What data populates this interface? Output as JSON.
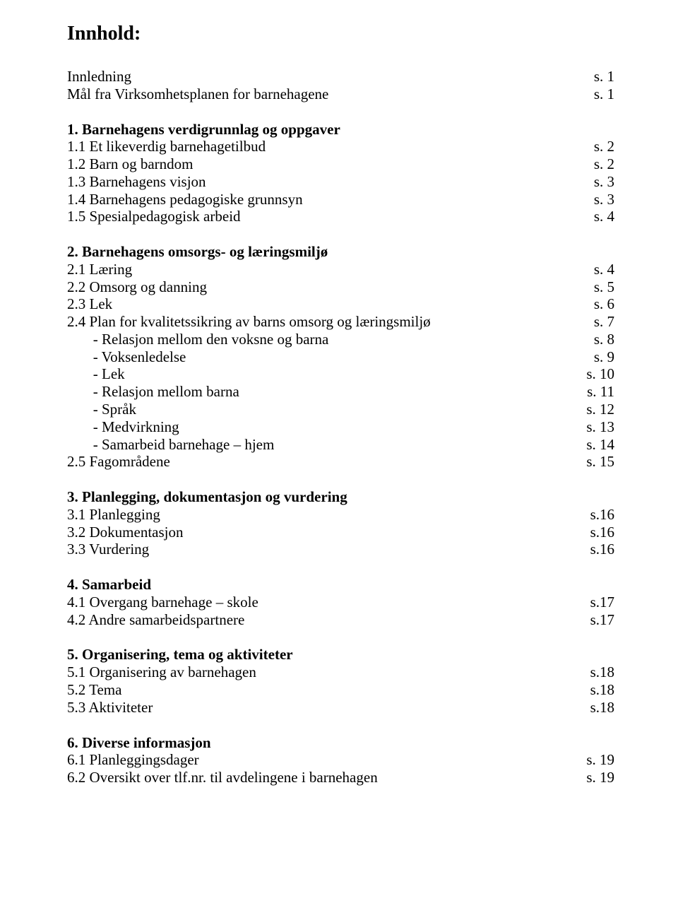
{
  "title": "Innhold:",
  "rows": [
    {
      "label": "Innledning",
      "page": "s. 1"
    },
    {
      "label": "Mål fra Virksomhetsplanen for barnehagene",
      "page": "s. 1"
    },
    {
      "gap": true
    },
    {
      "label": "1. Barnehagens verdigrunnlag og oppgaver",
      "bold": true,
      "page": ""
    },
    {
      "label": "1.1 Et likeverdig barnehagetilbud",
      "page": "s. 2"
    },
    {
      "label": "1.2 Barn og barndom",
      "page": "s. 2"
    },
    {
      "label": "1.3 Barnehagens visjon",
      "page": "s. 3"
    },
    {
      "label": "1.4 Barnehagens pedagogiske grunnsyn",
      "page": "s. 3"
    },
    {
      "label": "1.5 Spesialpedagogisk arbeid",
      "page": "s. 4"
    },
    {
      "gap": true
    },
    {
      "label": "2. Barnehagens omsorgs- og læringsmiljø",
      "bold": true,
      "page": ""
    },
    {
      "label": "2.1 Læring",
      "page": "s. 4"
    },
    {
      "label": "2.2 Omsorg og danning",
      "page": "s. 5"
    },
    {
      "label": "2.3 Lek",
      "page": "s. 6"
    },
    {
      "label": "2.4 Plan for kvalitetssikring av barns omsorg og læringsmiljø",
      "page": "s. 7"
    },
    {
      "label": "       - Relasjon mellom den voksne og barna",
      "page": "s. 8"
    },
    {
      "label": "       - Voksenledelse",
      "page": "s. 9"
    },
    {
      "label": "       - Lek",
      "page": "s. 10"
    },
    {
      "label": "       - Relasjon mellom barna",
      "page": "s. 11"
    },
    {
      "label": "       - Språk",
      "page": "s. 12"
    },
    {
      "label": "       - Medvirkning",
      "page": "s. 13"
    },
    {
      "label": "       - Samarbeid barnehage – hjem",
      "page": "s. 14"
    },
    {
      "label": "2.5 Fagområdene",
      "page": "s. 15"
    },
    {
      "gap": true
    },
    {
      "label": "3. Planlegging, dokumentasjon og vurdering",
      "bold": true,
      "page": ""
    },
    {
      "label": "3.1 Planlegging",
      "page": "s.16"
    },
    {
      "label": "3.2 Dokumentasjon",
      "page": "s.16"
    },
    {
      "label": "3.3 Vurdering",
      "page": "s.16"
    },
    {
      "gap": true
    },
    {
      "label": "4. Samarbeid",
      "bold": true,
      "page": ""
    },
    {
      "label": "4.1 Overgang barnehage – skole",
      "page": "s.17"
    },
    {
      "label": "4.2 Andre samarbeidspartnere",
      "page": "s.17"
    },
    {
      "gap": true
    },
    {
      "label": "5. Organisering, tema og aktiviteter",
      "bold": true,
      "page": ""
    },
    {
      "label": "5.1 Organisering av barnehagen",
      "page": "s.18"
    },
    {
      "label": "5.2 Tema",
      "page": "s.18"
    },
    {
      "label": "5.3 Aktiviteter",
      "page": "s.18"
    },
    {
      "gap": true
    },
    {
      "label": "6. Diverse informasjon",
      "bold": true,
      "page": ""
    },
    {
      "label": "6.1 Planleggingsdager",
      "page": "s. 19"
    },
    {
      "label": "6.2 Oversikt over tlf.nr. til avdelingene i barnehagen",
      "page": "s. 19"
    }
  ]
}
